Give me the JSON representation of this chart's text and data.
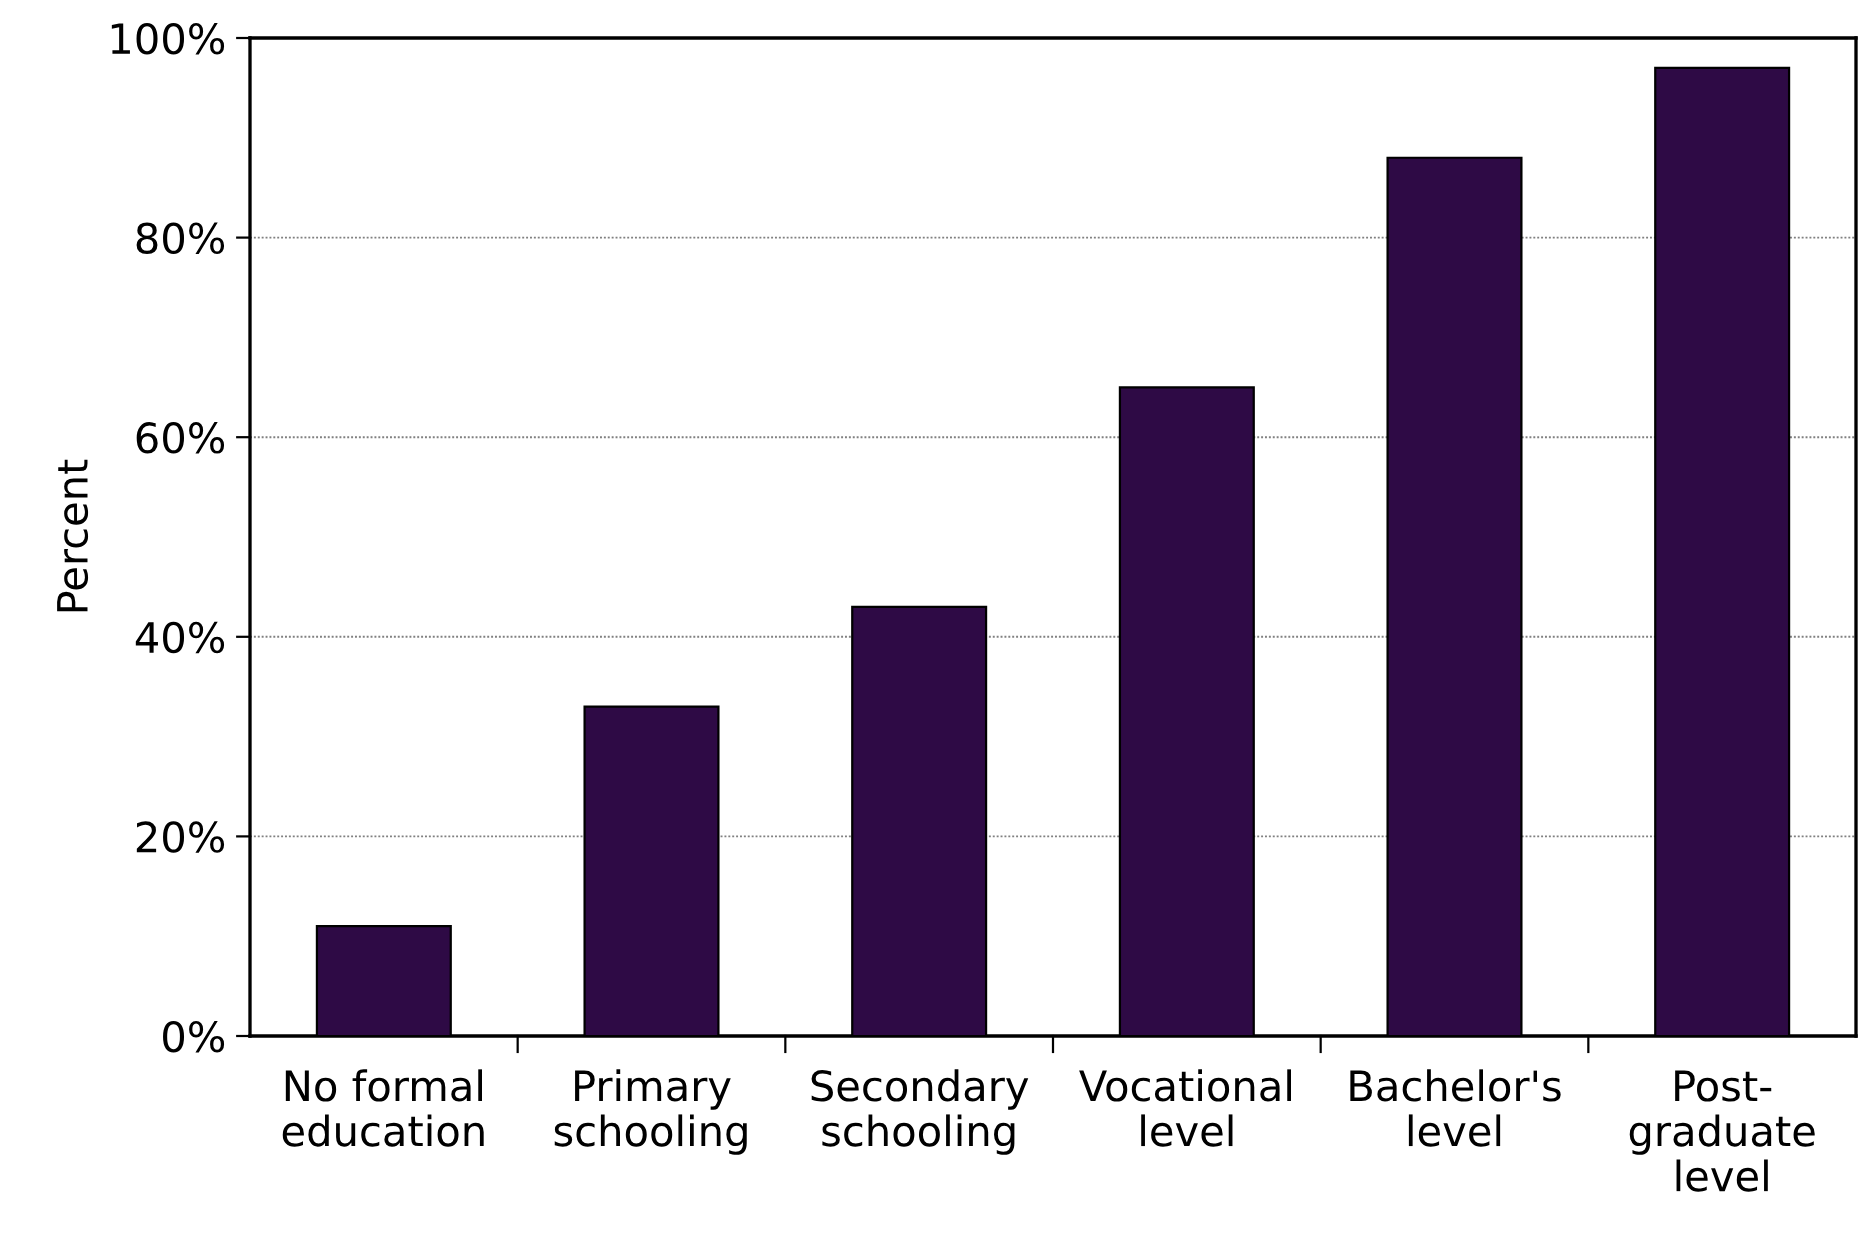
{
  "chart_data": {
    "type": "bar",
    "ylabel": "Percent",
    "categories": [
      "No formal\neducation",
      "Primary\nschooling",
      "Secondary\nschooling",
      "Vocational\nlevel",
      "Bachelor's\nlevel",
      "Post-\ngraduate\nlevel"
    ],
    "values": [
      11,
      33,
      43,
      65,
      88,
      97
    ],
    "color": "#2e0a45",
    "ylim": [
      0,
      100
    ],
    "yticks": [
      {
        "value": 0,
        "label": "0%"
      },
      {
        "value": 20,
        "label": "20%"
      },
      {
        "value": 40,
        "label": "40%"
      },
      {
        "value": 60,
        "label": "60%"
      },
      {
        "value": 80,
        "label": "80%"
      },
      {
        "value": 100,
        "label": "100%"
      }
    ],
    "grid": "y",
    "legend": false
  }
}
